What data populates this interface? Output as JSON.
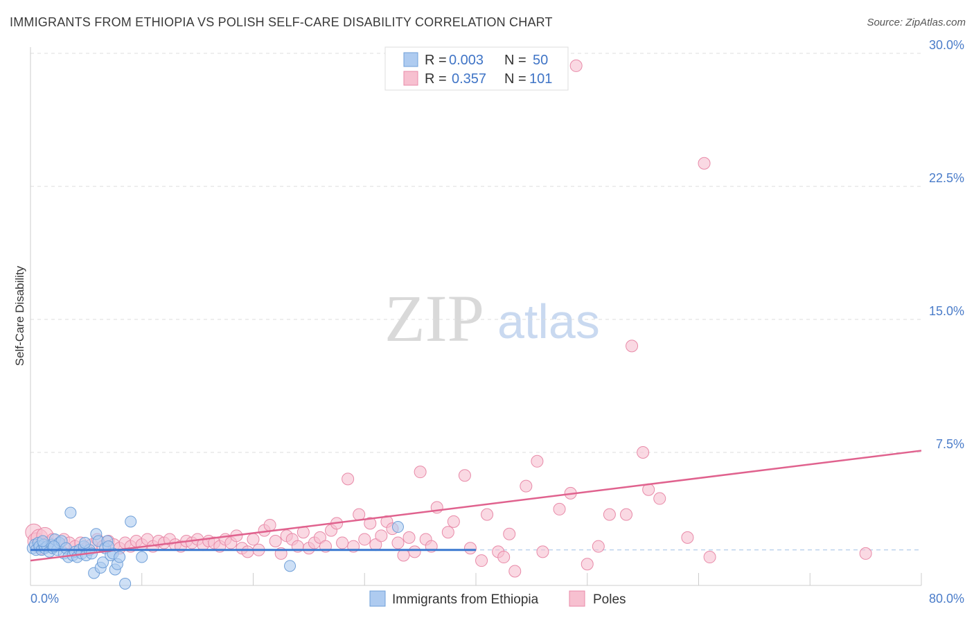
{
  "title": "IMMIGRANTS FROM ETHIOPIA VS POLISH SELF-CARE DISABILITY CORRELATION CHART",
  "source": "Source: ZipAtlas.com",
  "watermark": {
    "zip": "ZIP",
    "atlas": "atlas"
  },
  "legend": {
    "rows": [
      {
        "r_label": "R =",
        "r_value": "0.003",
        "n_label": "N =",
        "n_value": "50"
      },
      {
        "r_label": "R =",
        "r_value": "0.357",
        "n_label": "N =",
        "n_value": "101"
      }
    ]
  },
  "bottom_legend": [
    "Immigrants from Ethiopia",
    "Poles"
  ],
  "colors": {
    "blue_fill": "#aecbf0",
    "blue_stroke": "#6f9fd8",
    "blue_line": "#3a78d0",
    "pink_fill": "#f7c0d0",
    "pink_stroke": "#e88aa8",
    "pink_line": "#e0628e",
    "grid": "#dddddd",
    "label": "#4a7cc9"
  },
  "chart_data": {
    "type": "scatter",
    "title": "IMMIGRANTS FROM ETHIOPIA VS POLISH SELF-CARE DISABILITY CORRELATION CHART",
    "xlabel": "",
    "ylabel": "Self-Care Disability",
    "xlim": [
      0,
      80
    ],
    "ylim": [
      0,
      30
    ],
    "x_tick_labels": [
      "0.0%",
      "80.0%"
    ],
    "y_tick_labels": [
      "7.5%",
      "15.0%",
      "22.5%",
      "30.0%"
    ],
    "y_ticks": [
      7.5,
      15,
      22.5,
      30
    ],
    "reference_y": 2.0,
    "series": [
      {
        "name": "Immigrants from Ethiopia",
        "r": 0.003,
        "n": 50,
        "trend": {
          "x0": 0.0,
          "y0": 2.0,
          "x1": 40.0,
          "y1": 2.0
        },
        "points": [
          [
            0.2,
            2.1
          ],
          [
            0.4,
            2.3
          ],
          [
            0.5,
            2.0
          ],
          [
            0.7,
            2.4
          ],
          [
            0.8,
            2.2
          ],
          [
            1.0,
            2.0
          ],
          [
            1.2,
            2.3
          ],
          [
            1.3,
            2.1
          ],
          [
            1.5,
            2.2
          ],
          [
            1.7,
            1.9
          ],
          [
            1.9,
            2.3
          ],
          [
            2.0,
            2.1
          ],
          [
            2.2,
            2.6
          ],
          [
            2.4,
            2.0
          ],
          [
            2.6,
            2.4
          ],
          [
            2.8,
            2.5
          ],
          [
            3.0,
            1.8
          ],
          [
            3.2,
            2.1
          ],
          [
            3.4,
            1.6
          ],
          [
            3.6,
            4.1
          ],
          [
            3.8,
            1.7
          ],
          [
            4.0,
            1.9
          ],
          [
            4.2,
            1.6
          ],
          [
            4.4,
            2.0
          ],
          [
            4.6,
            1.8
          ],
          [
            4.8,
            2.2
          ],
          [
            5.0,
            1.7
          ],
          [
            5.3,
            2.0
          ],
          [
            5.5,
            1.8
          ],
          [
            5.7,
            0.7
          ],
          [
            5.9,
            2.9
          ],
          [
            6.1,
            2.5
          ],
          [
            6.3,
            1.0
          ],
          [
            6.5,
            1.3
          ],
          [
            6.7,
            2.1
          ],
          [
            6.9,
            2.5
          ],
          [
            7.2,
            1.7
          ],
          [
            7.4,
            1.8
          ],
          [
            7.6,
            0.9
          ],
          [
            7.8,
            1.2
          ],
          [
            8.0,
            1.6
          ],
          [
            8.5,
            0.1
          ],
          [
            9.0,
            3.6
          ],
          [
            10.0,
            1.6
          ],
          [
            7.0,
            2.2
          ],
          [
            1.1,
            2.5
          ],
          [
            2.1,
            2.2
          ],
          [
            4.9,
            2.4
          ],
          [
            23.3,
            1.1
          ],
          [
            33.0,
            3.3
          ]
        ]
      },
      {
        "name": "Poles",
        "r": 0.357,
        "n": 101,
        "trend": {
          "x0": 0.0,
          "y0": 1.4,
          "x1": 80.0,
          "y1": 7.6
        },
        "points": [
          [
            0.3,
            3.0
          ],
          [
            0.5,
            2.5
          ],
          [
            0.8,
            2.7
          ],
          [
            1.0,
            2.2
          ],
          [
            1.3,
            2.8
          ],
          [
            1.6,
            2.4
          ],
          [
            2.0,
            2.6
          ],
          [
            2.5,
            2.3
          ],
          [
            3.0,
            2.6
          ],
          [
            3.5,
            2.4
          ],
          [
            4.0,
            2.2
          ],
          [
            4.5,
            2.4
          ],
          [
            5.0,
            2.1
          ],
          [
            5.5,
            2.3
          ],
          [
            6.0,
            2.6
          ],
          [
            6.5,
            2.2
          ],
          [
            7.0,
            2.5
          ],
          [
            7.5,
            2.3
          ],
          [
            8.0,
            2.1
          ],
          [
            8.5,
            2.4
          ],
          [
            9.0,
            2.2
          ],
          [
            9.5,
            2.5
          ],
          [
            10.0,
            2.3
          ],
          [
            10.5,
            2.6
          ],
          [
            11.0,
            2.2
          ],
          [
            11.5,
            2.5
          ],
          [
            12.0,
            2.4
          ],
          [
            12.5,
            2.6
          ],
          [
            13.0,
            2.3
          ],
          [
            13.5,
            2.2
          ],
          [
            14.0,
            2.5
          ],
          [
            14.5,
            2.4
          ],
          [
            15.0,
            2.6
          ],
          [
            15.5,
            2.3
          ],
          [
            16.0,
            2.5
          ],
          [
            16.5,
            2.4
          ],
          [
            17.0,
            2.2
          ],
          [
            17.5,
            2.6
          ],
          [
            18.0,
            2.4
          ],
          [
            18.5,
            2.8
          ],
          [
            19.0,
            2.1
          ],
          [
            19.5,
            1.9
          ],
          [
            20.0,
            2.6
          ],
          [
            20.5,
            2.0
          ],
          [
            21.0,
            3.1
          ],
          [
            21.5,
            3.4
          ],
          [
            22.0,
            2.5
          ],
          [
            22.5,
            1.8
          ],
          [
            23.0,
            2.8
          ],
          [
            23.5,
            2.6
          ],
          [
            24.0,
            2.2
          ],
          [
            24.5,
            3.0
          ],
          [
            25.0,
            2.1
          ],
          [
            25.5,
            2.4
          ],
          [
            26.0,
            2.7
          ],
          [
            26.5,
            2.2
          ],
          [
            27.0,
            3.1
          ],
          [
            27.5,
            3.5
          ],
          [
            28.0,
            2.4
          ],
          [
            28.5,
            6.0
          ],
          [
            29.0,
            2.2
          ],
          [
            29.5,
            4.0
          ],
          [
            30.0,
            2.6
          ],
          [
            30.5,
            3.5
          ],
          [
            31.0,
            2.3
          ],
          [
            31.5,
            2.8
          ],
          [
            32.0,
            3.6
          ],
          [
            32.5,
            3.2
          ],
          [
            33.0,
            2.4
          ],
          [
            33.5,
            1.7
          ],
          [
            34.0,
            2.7
          ],
          [
            34.5,
            1.9
          ],
          [
            35.0,
            6.4
          ],
          [
            35.5,
            2.6
          ],
          [
            36.0,
            2.2
          ],
          [
            36.5,
            4.4
          ],
          [
            37.5,
            3.0
          ],
          [
            38.0,
            3.6
          ],
          [
            39.0,
            6.2
          ],
          [
            39.5,
            2.1
          ],
          [
            40.5,
            1.4
          ],
          [
            41.0,
            4.0
          ],
          [
            42.0,
            1.9
          ],
          [
            42.5,
            1.6
          ],
          [
            43.0,
            2.9
          ],
          [
            43.5,
            0.8
          ],
          [
            44.5,
            5.6
          ],
          [
            45.5,
            7.0
          ],
          [
            46.0,
            1.9
          ],
          [
            47.5,
            4.3
          ],
          [
            48.5,
            5.2
          ],
          [
            49.0,
            29.3
          ],
          [
            50.0,
            1.2
          ],
          [
            51.0,
            2.2
          ],
          [
            52.0,
            4.0
          ],
          [
            53.5,
            4.0
          ],
          [
            54.0,
            13.5
          ],
          [
            55.0,
            7.5
          ],
          [
            55.5,
            5.4
          ],
          [
            56.5,
            4.9
          ],
          [
            59.0,
            2.7
          ],
          [
            60.5,
            23.8
          ],
          [
            61.0,
            1.6
          ],
          [
            75.0,
            1.8
          ]
        ]
      }
    ]
  }
}
